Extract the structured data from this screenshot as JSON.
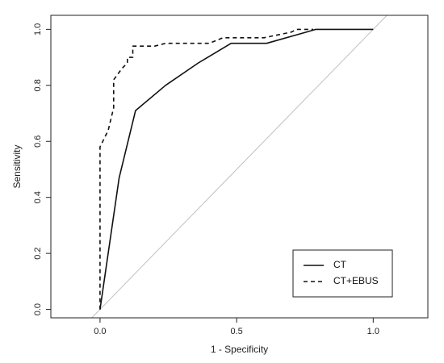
{
  "chart_data": {
    "type": "line",
    "title": "",
    "xlabel": "1 - Specificity",
    "ylabel": "Sensitivity",
    "xlim": [
      -0.18,
      1.2
    ],
    "ylim": [
      -0.03,
      1.05
    ],
    "x_ticks": [
      0.0,
      0.5,
      1.0
    ],
    "x_tick_labels": [
      "0.0",
      "0.5",
      "1.0"
    ],
    "y_ticks": [
      0.0,
      0.2,
      0.4,
      0.6,
      0.8,
      1.0
    ],
    "y_tick_labels": [
      "0.0",
      "0.2",
      "0.4",
      "0.6",
      "0.8",
      "1.0"
    ],
    "grid": false,
    "legend_position": "bottom-right",
    "reference_line": {
      "from": [
        -0.03,
        -0.03
      ],
      "to": [
        1.05,
        1.05
      ],
      "color": "#c0c0c0"
    },
    "series": [
      {
        "name": "CT",
        "line_style": "solid",
        "color": "#111111",
        "points": [
          [
            0.0,
            0.0
          ],
          [
            0.07,
            0.47
          ],
          [
            0.13,
            0.71
          ],
          [
            0.24,
            0.8
          ],
          [
            0.36,
            0.88
          ],
          [
            0.48,
            0.95
          ],
          [
            0.61,
            0.95
          ],
          [
            0.79,
            1.0
          ],
          [
            1.0,
            1.0
          ]
        ]
      },
      {
        "name": "CT+EBUS",
        "line_style": "dashed",
        "color": "#111111",
        "points": [
          [
            0.0,
            0.0
          ],
          [
            0.0,
            0.58
          ],
          [
            0.03,
            0.64
          ],
          [
            0.04,
            0.68
          ],
          [
            0.05,
            0.72
          ],
          [
            0.05,
            0.82
          ],
          [
            0.08,
            0.86
          ],
          [
            0.1,
            0.88
          ],
          [
            0.1,
            0.9
          ],
          [
            0.12,
            0.9
          ],
          [
            0.12,
            0.94
          ],
          [
            0.2,
            0.94
          ],
          [
            0.24,
            0.95
          ],
          [
            0.4,
            0.95
          ],
          [
            0.45,
            0.97
          ],
          [
            0.6,
            0.97
          ],
          [
            0.7,
            0.99
          ],
          [
            0.72,
            1.0
          ],
          [
            0.78,
            1.0
          ]
        ]
      }
    ]
  }
}
